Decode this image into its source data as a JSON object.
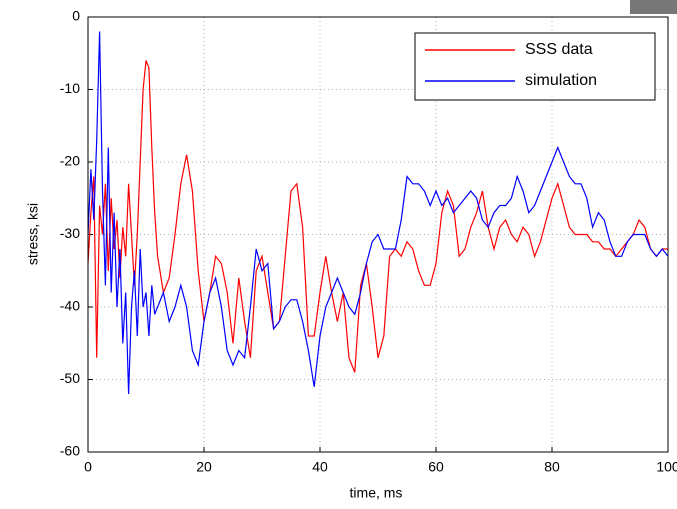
{
  "chart_data": {
    "type": "line",
    "x_label": "time, ms",
    "y_label": "stress, ksi",
    "x": [
      0,
      0.5,
      1,
      1.5,
      2,
      2.5,
      3,
      3.5,
      4,
      4.5,
      5,
      5.5,
      6,
      6.5,
      7,
      7.5,
      8,
      8.5,
      9,
      9.5,
      10,
      10.5,
      11,
      11.5,
      12,
      13,
      14,
      15,
      16,
      17,
      18,
      19,
      20,
      21,
      22,
      23,
      24,
      25,
      26,
      27,
      28,
      29,
      30,
      31,
      32,
      33,
      34,
      35,
      36,
      37,
      38,
      39,
      40,
      41,
      42,
      43,
      44,
      45,
      46,
      47,
      48,
      49,
      50,
      51,
      52,
      53,
      54,
      55,
      56,
      57,
      58,
      59,
      60,
      61,
      62,
      63,
      64,
      65,
      66,
      67,
      68,
      69,
      70,
      71,
      72,
      73,
      74,
      75,
      76,
      77,
      78,
      79,
      80,
      81,
      82,
      83,
      84,
      85,
      86,
      87,
      88,
      89,
      90,
      91,
      92,
      93,
      94,
      95,
      96,
      97,
      98,
      99,
      100
    ],
    "series": [
      {
        "name": "SSS data",
        "color": "#ff0000",
        "values": [
          -34,
          -27,
          -22,
          -47,
          -26,
          -30,
          -23,
          -35,
          -25,
          -32,
          -28,
          -36,
          -29,
          -33,
          -23,
          -30,
          -37,
          -30,
          -20,
          -10,
          -6,
          -7,
          -18,
          -27,
          -33,
          -38,
          -36,
          -30,
          -23,
          -19,
          -24,
          -35,
          -42,
          -38,
          -33,
          -34,
          -38,
          -45,
          -36,
          -42,
          -47,
          -35,
          -33,
          -38,
          -43,
          -42,
          -33,
          -24,
          -23,
          -29,
          -44,
          -44,
          -38,
          -33,
          -38,
          -42,
          -38,
          -47,
          -49,
          -37,
          -34,
          -40,
          -47,
          -44,
          -33,
          -32,
          -33,
          -31,
          -32,
          -35,
          -37,
          -37,
          -34,
          -27,
          -24,
          -26,
          -33,
          -32,
          -29,
          -27,
          -24,
          -29,
          -32,
          -29,
          -28,
          -30,
          -31,
          -29,
          -30,
          -33,
          -31,
          -28,
          -25,
          -23,
          -26,
          -29,
          -30,
          -30,
          -30,
          -31,
          -31,
          -32,
          -32,
          -33,
          -32,
          -31,
          -30,
          -28,
          -29,
          -32,
          -33,
          -32,
          -32
        ]
      },
      {
        "name": "simulation",
        "color": "#0000ff",
        "values": [
          -30,
          -21,
          -28,
          -17,
          -2,
          -24,
          -37,
          -18,
          -38,
          -27,
          -40,
          -32,
          -45,
          -38,
          -52,
          -40,
          -35,
          -44,
          -32,
          -40,
          -38,
          -44,
          -37,
          -41,
          -40,
          -38,
          -42,
          -40,
          -37,
          -40,
          -46,
          -48,
          -42,
          -38,
          -36,
          -40,
          -46,
          -48,
          -46,
          -47,
          -40,
          -32,
          -35,
          -34,
          -43,
          -42,
          -40,
          -39,
          -39,
          -42,
          -46,
          -51,
          -44,
          -40,
          -38,
          -36,
          -38,
          -40,
          -41,
          -38,
          -34,
          -31,
          -30,
          -32,
          -32,
          -32,
          -28,
          -22,
          -23,
          -23,
          -24,
          -26,
          -24,
          -26,
          -25,
          -27,
          -26,
          -25,
          -24,
          -25,
          -28,
          -29,
          -27,
          -26,
          -26,
          -25,
          -22,
          -24,
          -27,
          -26,
          -24,
          -22,
          -20,
          -18,
          -20,
          -22,
          -23,
          -23,
          -25,
          -29,
          -27,
          -28,
          -31,
          -33,
          -33,
          -31,
          -30,
          -30,
          -30,
          -32,
          -33,
          -32,
          -33
        ]
      }
    ],
    "xlim": [
      0,
      100
    ],
    "xticks": [
      0,
      20,
      40,
      60,
      80,
      100
    ],
    "ylim": [
      -60,
      0
    ],
    "yticks": [
      -60,
      -50,
      -40,
      -30,
      -20,
      -10,
      0
    ],
    "grid": true,
    "legend": "upper-right"
  }
}
